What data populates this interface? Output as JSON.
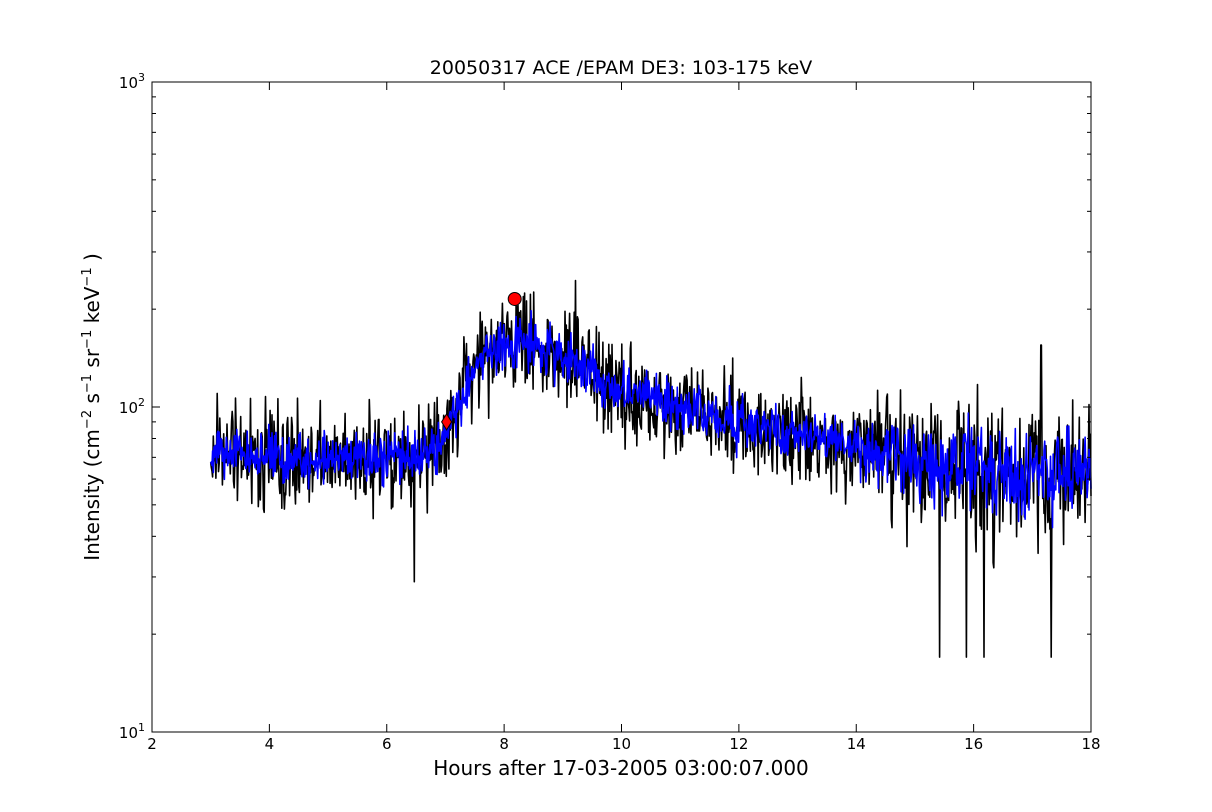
{
  "chart_data": {
    "type": "line",
    "title": "20050317 ACE /EPAM DE3: 103-175 keV",
    "xlabel": "Hours after 17-03-2005 03:00:07.000",
    "ylabel_parts": {
      "base": "Intensity (cm",
      "exp1": "−2",
      "s": " s",
      "exp2": "−1",
      "sr": " sr",
      "exp3": "−1",
      "kev": " keV",
      "exp4": "−1",
      "close": " )"
    },
    "xlim": [
      2,
      18
    ],
    "ylim": [
      10,
      1000
    ],
    "yscale": "log",
    "x_ticks": [
      "2",
      "4",
      "6",
      "8",
      "10",
      "12",
      "14",
      "16",
      "18"
    ],
    "y_ticks": [
      {
        "base": "10",
        "exp": "1"
      },
      {
        "base": "10",
        "exp": "2"
      },
      {
        "base": "10",
        "exp": "3"
      }
    ],
    "grid": false,
    "series": [
      {
        "role": "raw",
        "color": "#000000",
        "x_range": [
          3.0,
          18.0
        ],
        "envelope": [
          {
            "x": 3.0,
            "y": 72
          },
          {
            "x": 4.0,
            "y": 70
          },
          {
            "x": 5.0,
            "y": 68
          },
          {
            "x": 6.0,
            "y": 70
          },
          {
            "x": 6.8,
            "y": 72
          },
          {
            "x": 7.2,
            "y": 100
          },
          {
            "x": 7.6,
            "y": 140
          },
          {
            "x": 8.2,
            "y": 160
          },
          {
            "x": 8.8,
            "y": 150
          },
          {
            "x": 9.5,
            "y": 125
          },
          {
            "x": 10.5,
            "y": 105
          },
          {
            "x": 12.0,
            "y": 88
          },
          {
            "x": 13.5,
            "y": 78
          },
          {
            "x": 15.0,
            "y": 68
          },
          {
            "x": 16.5,
            "y": 63
          },
          {
            "x": 18.0,
            "y": 62
          }
        ]
      },
      {
        "role": "smoothed",
        "color": "#0000ff",
        "x_range": [
          3.0,
          18.0
        ],
        "envelope": [
          {
            "x": 3.0,
            "y": 72
          },
          {
            "x": 4.0,
            "y": 70
          },
          {
            "x": 5.0,
            "y": 68
          },
          {
            "x": 6.0,
            "y": 70
          },
          {
            "x": 6.8,
            "y": 72
          },
          {
            "x": 7.2,
            "y": 100
          },
          {
            "x": 7.6,
            "y": 140
          },
          {
            "x": 8.2,
            "y": 160
          },
          {
            "x": 8.8,
            "y": 150
          },
          {
            "x": 9.5,
            "y": 125
          },
          {
            "x": 10.5,
            "y": 105
          },
          {
            "x": 12.0,
            "y": 88
          },
          {
            "x": 13.5,
            "y": 78
          },
          {
            "x": 15.0,
            "y": 68
          },
          {
            "x": 16.5,
            "y": 63
          },
          {
            "x": 18.0,
            "y": 62
          }
        ]
      }
    ],
    "markers": [
      {
        "shape": "diamond",
        "x": 7.02,
        "y": 90,
        "color": "#ff0000"
      },
      {
        "shape": "circle",
        "x": 8.18,
        "y": 215,
        "color": "#ff0000"
      }
    ],
    "extreme_spikes": [
      {
        "x": 9.22,
        "y": 245,
        "dir": "up"
      },
      {
        "x": 17.15,
        "y": 155,
        "dir": "up"
      },
      {
        "x": 6.47,
        "y": 29,
        "dir": "down"
      },
      {
        "x": 15.42,
        "y": 17,
        "dir": "down"
      },
      {
        "x": 15.88,
        "y": 17,
        "dir": "down"
      },
      {
        "x": 16.18,
        "y": 17,
        "dir": "down"
      },
      {
        "x": 17.32,
        "y": 17,
        "dir": "down"
      }
    ]
  }
}
